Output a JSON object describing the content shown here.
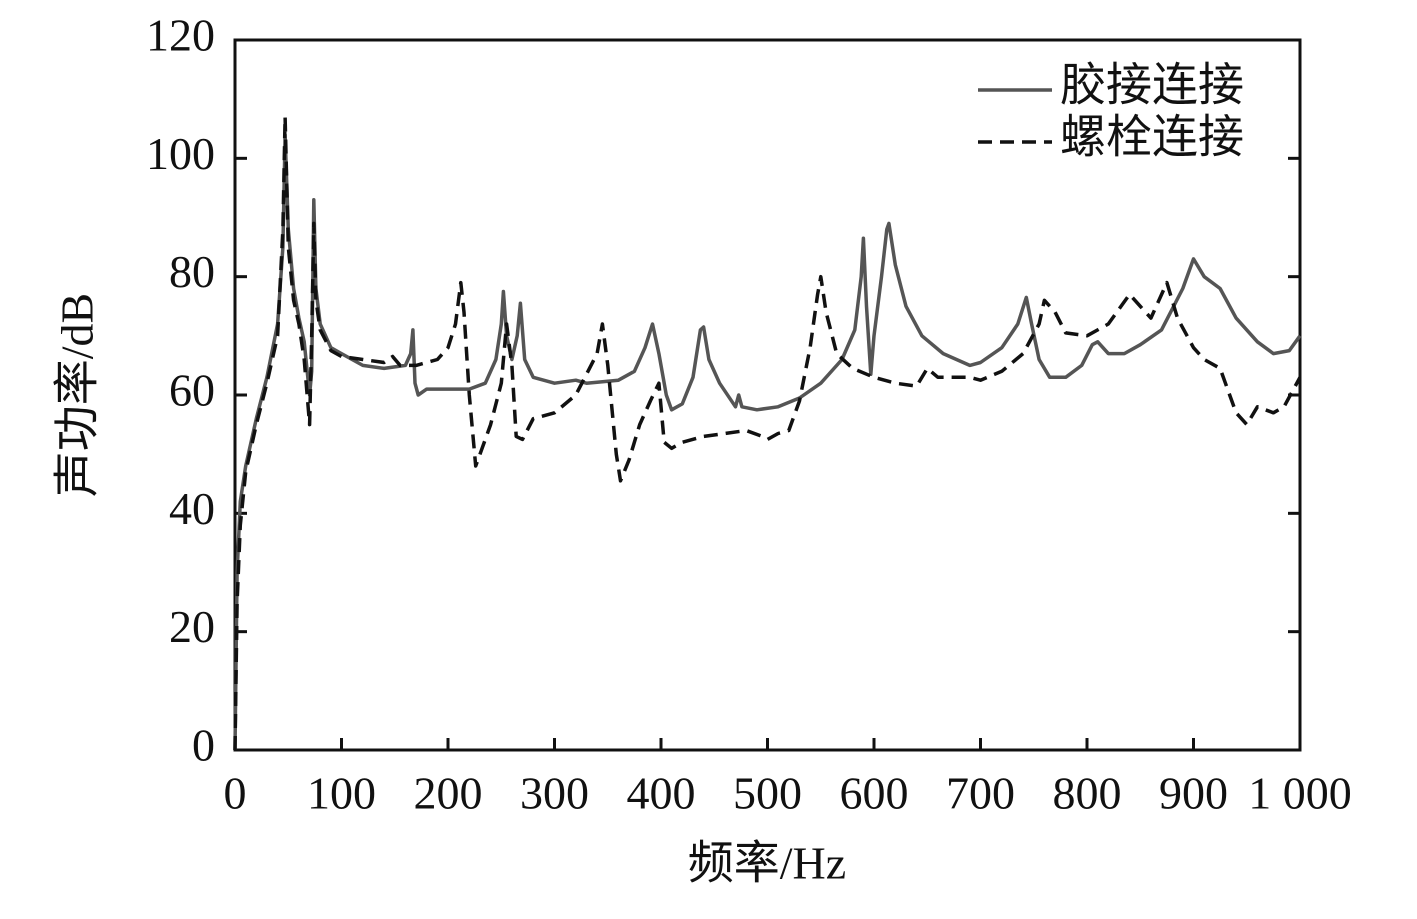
{
  "chart_data": {
    "type": "line",
    "xlabel": "频率/Hz",
    "ylabel": "声功率/dB",
    "xlim": [
      0,
      1000
    ],
    "ylim": [
      0,
      120
    ],
    "xticks": [
      0,
      100,
      200,
      300,
      400,
      500,
      600,
      700,
      800,
      900,
      {
        "value": 1000,
        "label": "1 000"
      }
    ],
    "yticks": [
      0,
      20,
      40,
      60,
      80,
      100,
      120
    ],
    "legend": "upper right",
    "series": [
      {
        "name": "胶接连接",
        "color": "#555555",
        "dash": "solid",
        "x": [
          0,
          2,
          5,
          10,
          20,
          30,
          40,
          45,
          47,
          50,
          55,
          60,
          65,
          70,
          72,
          74,
          76,
          80,
          90,
          100,
          120,
          140,
          160,
          165,
          167,
          169,
          172,
          180,
          200,
          220,
          235,
          245,
          250,
          252,
          255,
          260,
          265,
          268,
          272,
          280,
          300,
          320,
          330,
          360,
          375,
          385,
          392,
          398,
          405,
          410,
          420,
          430,
          437,
          440,
          445,
          455,
          470,
          473,
          476,
          490,
          510,
          530,
          550,
          570,
          582,
          588,
          590,
          593,
          597,
          600,
          607,
          612,
          614,
          620,
          630,
          645,
          665,
          690,
          700,
          720,
          735,
          743,
          748,
          755,
          765,
          780,
          795,
          805,
          810,
          820,
          835,
          850,
          870,
          890,
          900,
          910,
          925,
          940,
          960,
          975,
          990,
          1000
        ],
        "values": [
          0,
          30,
          42,
          48,
          56,
          63,
          72,
          85,
          104,
          88,
          78,
          73,
          69,
          60,
          64,
          93,
          78,
          72,
          68,
          67,
          65,
          64.5,
          65,
          67,
          71,
          62,
          60,
          61,
          61,
          61,
          62,
          66,
          72,
          77.5,
          70,
          66,
          70,
          75.5,
          66,
          63,
          62,
          62.5,
          62,
          62.5,
          64,
          68,
          72,
          67,
          60,
          57.5,
          58.5,
          63,
          71,
          71.5,
          66,
          62,
          58,
          60,
          58,
          57.5,
          58,
          59.5,
          62,
          66,
          71,
          80,
          86.5,
          75,
          63.5,
          70,
          80,
          88,
          89,
          82,
          75,
          70,
          67,
          65,
          65.5,
          68,
          72,
          76.5,
          72,
          66,
          63,
          63,
          65,
          68.5,
          69,
          67,
          67,
          68.5,
          71,
          78,
          83,
          80,
          78,
          73,
          69,
          67,
          67.5,
          70
        ]
      },
      {
        "name": "螺栓连接",
        "color": "#111111",
        "dash": "dashed",
        "x": [
          0,
          2,
          5,
          10,
          20,
          30,
          40,
          45,
          47,
          50,
          55,
          60,
          65,
          70,
          72,
          74,
          76,
          80,
          90,
          100,
          120,
          140,
          148,
          155,
          170,
          190,
          200,
          207,
          212,
          215,
          220,
          226,
          230,
          240,
          250,
          255,
          260,
          264,
          270,
          280,
          300,
          320,
          340,
          345,
          350,
          358,
          362,
          370,
          380,
          390,
          398,
          403,
          410,
          420,
          440,
          460,
          480,
          495,
          500,
          510,
          520,
          530,
          540,
          547,
          550,
          555,
          565,
          580,
          600,
          620,
          640,
          650,
          660,
          690,
          700,
          720,
          740,
          755,
          760,
          770,
          780,
          800,
          820,
          840,
          850,
          860,
          875,
          885,
          900,
          910,
          925,
          940,
          950,
          960,
          975,
          985,
          1000
        ],
        "values": [
          0,
          25,
          38,
          47,
          55,
          62,
          70,
          88,
          107,
          85,
          76,
          72,
          66,
          55,
          70,
          89,
          76,
          71,
          67.5,
          66.5,
          66,
          65.5,
          66.5,
          65,
          65,
          66,
          68,
          72,
          79,
          74,
          60,
          48,
          50,
          55,
          62,
          72,
          65,
          53,
          52.5,
          56,
          57,
          60,
          67,
          72,
          65,
          50,
          45.5,
          49,
          55,
          59,
          62,
          52,
          51,
          52,
          53,
          53.5,
          54,
          53,
          52.5,
          53.5,
          54,
          59,
          68,
          77,
          80,
          74,
          67,
          64.5,
          63,
          62,
          61.5,
          64.5,
          63,
          63,
          62.5,
          64,
          67,
          72,
          76,
          74,
          70.5,
          70,
          72,
          77,
          75,
          73,
          79,
          73,
          68,
          66,
          64.5,
          57,
          55,
          58,
          57,
          58,
          63
        ]
      }
    ]
  }
}
